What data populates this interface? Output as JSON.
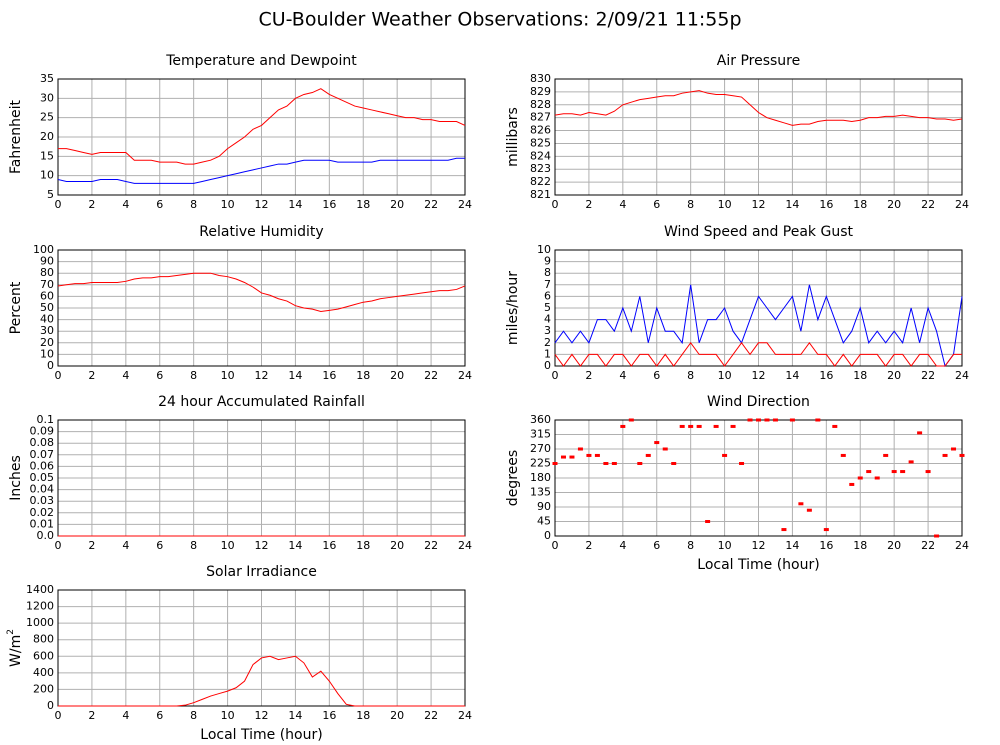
{
  "title": "CU-Boulder Weather Observations: 2/09/21 11:55p",
  "chart_data": [
    {
      "type": "line",
      "title": "Temperature and Dewpoint",
      "ylabel": "Fahrenheit",
      "x": [
        0,
        0.5,
        1,
        1.5,
        2,
        2.5,
        3,
        3.5,
        4,
        4.5,
        5,
        5.5,
        6,
        6.5,
        7,
        7.5,
        8,
        8.5,
        9,
        9.5,
        10,
        10.5,
        11,
        11.5,
        12,
        12.5,
        13,
        13.5,
        14,
        14.5,
        15,
        15.5,
        16,
        16.5,
        17,
        17.5,
        18,
        18.5,
        19,
        19.5,
        20,
        20.5,
        21,
        21.5,
        22,
        22.5,
        23,
        23.5,
        24
      ],
      "series": [
        {
          "color": "#ff0000",
          "values": [
            17,
            17,
            16.5,
            16,
            15.5,
            16,
            16,
            16,
            16,
            14,
            14,
            14,
            13.5,
            13.5,
            13.5,
            13,
            13,
            13.5,
            14,
            15,
            17,
            18.5,
            20,
            22,
            23,
            25,
            27,
            28,
            30,
            31,
            31.5,
            32.5,
            31,
            30,
            29,
            28,
            27.5,
            27,
            26.5,
            26,
            25.5,
            25,
            25,
            24.5,
            24.5,
            24,
            24,
            24,
            23
          ]
        },
        {
          "color": "#0000ff",
          "values": [
            9,
            8.5,
            8.5,
            8.5,
            8.5,
            9,
            9,
            9,
            8.5,
            8,
            8,
            8,
            8,
            8,
            8,
            8,
            8,
            8.5,
            9,
            9.5,
            10,
            10.5,
            11,
            11.5,
            12,
            12.5,
            13,
            13,
            13.5,
            14,
            14,
            14,
            14,
            13.5,
            13.5,
            13.5,
            13.5,
            13.5,
            14,
            14,
            14,
            14,
            14,
            14,
            14,
            14,
            14,
            14.5,
            14.5
          ]
        }
      ],
      "xlim": [
        0,
        24
      ],
      "xticks": [
        0,
        2,
        4,
        6,
        8,
        10,
        12,
        14,
        16,
        18,
        20,
        22,
        24
      ],
      "ylim": [
        5,
        35
      ],
      "yticks": [
        5,
        10,
        15,
        20,
        25,
        30,
        35
      ],
      "grid": true
    },
    {
      "type": "line",
      "title": "Air Pressure",
      "ylabel": "millibars",
      "x": [
        0,
        0.5,
        1,
        1.5,
        2,
        2.5,
        3,
        3.5,
        4,
        4.5,
        5,
        5.5,
        6,
        6.5,
        7,
        7.5,
        8,
        8.5,
        9,
        9.5,
        10,
        10.5,
        11,
        11.5,
        12,
        12.5,
        13,
        13.5,
        14,
        14.5,
        15,
        15.5,
        16,
        16.5,
        17,
        17.5,
        18,
        18.5,
        19,
        19.5,
        20,
        20.5,
        21,
        21.5,
        22,
        22.5,
        23,
        23.5,
        24
      ],
      "series": [
        {
          "color": "#ff0000",
          "values": [
            827.2,
            827.3,
            827.3,
            827.2,
            827.4,
            827.3,
            827.2,
            827.5,
            828,
            828.2,
            828.4,
            828.5,
            828.6,
            828.7,
            828.7,
            828.9,
            829,
            829.1,
            828.9,
            828.8,
            828.8,
            828.7,
            828.6,
            828,
            827.4,
            827,
            826.8,
            826.6,
            826.4,
            826.5,
            826.5,
            826.7,
            826.8,
            826.8,
            826.8,
            826.7,
            826.8,
            827,
            827,
            827.1,
            827.1,
            827.2,
            827.1,
            827,
            827,
            826.9,
            826.9,
            826.8,
            826.9
          ]
        }
      ],
      "xlim": [
        0,
        24
      ],
      "xticks": [
        0,
        2,
        4,
        6,
        8,
        10,
        12,
        14,
        16,
        18,
        20,
        22,
        24
      ],
      "ylim": [
        821,
        830
      ],
      "yticks": [
        821,
        822,
        823,
        824,
        825,
        826,
        827,
        828,
        829,
        830
      ],
      "grid": true
    },
    {
      "type": "line",
      "title": "Relative Humidity",
      "ylabel": "Percent",
      "x": [
        0,
        0.5,
        1,
        1.5,
        2,
        2.5,
        3,
        3.5,
        4,
        4.5,
        5,
        5.5,
        6,
        6.5,
        7,
        7.5,
        8,
        8.5,
        9,
        9.5,
        10,
        10.5,
        11,
        11.5,
        12,
        12.5,
        13,
        13.5,
        14,
        14.5,
        15,
        15.5,
        16,
        16.5,
        17,
        17.5,
        18,
        18.5,
        19,
        19.5,
        20,
        20.5,
        21,
        21.5,
        22,
        22.5,
        23,
        23.5,
        24
      ],
      "series": [
        {
          "color": "#ff0000",
          "values": [
            69,
            70,
            71,
            71,
            72,
            72,
            72,
            72,
            73,
            75,
            76,
            76,
            77,
            77,
            78,
            79,
            80,
            80,
            80,
            78,
            77,
            75,
            72,
            68,
            63,
            61,
            58,
            56,
            52,
            50,
            49,
            47,
            48,
            49,
            51,
            53,
            55,
            56,
            58,
            59,
            60,
            61,
            62,
            63,
            64,
            65,
            65,
            66,
            69
          ]
        }
      ],
      "xlim": [
        0,
        24
      ],
      "xticks": [
        0,
        2,
        4,
        6,
        8,
        10,
        12,
        14,
        16,
        18,
        20,
        22,
        24
      ],
      "ylim": [
        0,
        100
      ],
      "yticks": [
        0,
        10,
        20,
        30,
        40,
        50,
        60,
        70,
        80,
        90,
        100
      ],
      "grid": true
    },
    {
      "type": "line",
      "title": "Wind Speed and Peak Gust",
      "ylabel": "miles/hour",
      "x": [
        0,
        0.5,
        1,
        1.5,
        2,
        2.5,
        3,
        3.5,
        4,
        4.5,
        5,
        5.5,
        6,
        6.5,
        7,
        7.5,
        8,
        8.5,
        9,
        9.5,
        10,
        10.5,
        11,
        11.5,
        12,
        12.5,
        13,
        13.5,
        14,
        14.5,
        15,
        15.5,
        16,
        16.5,
        17,
        17.5,
        18,
        18.5,
        19,
        19.5,
        20,
        20.5,
        21,
        21.5,
        22,
        22.5,
        23,
        23.5,
        24
      ],
      "series": [
        {
          "color": "#0000ff",
          "values": [
            2,
            3,
            2,
            3,
            2,
            4,
            4,
            3,
            5,
            3,
            6,
            2,
            5,
            3,
            3,
            2,
            7,
            2,
            4,
            4,
            5,
            3,
            2,
            4,
            6,
            5,
            4,
            5,
            6,
            3,
            7,
            4,
            6,
            4,
            2,
            3,
            5,
            2,
            3,
            2,
            3,
            2,
            5,
            2,
            5,
            3,
            0,
            1,
            6
          ]
        },
        {
          "color": "#ff0000",
          "values": [
            1,
            0,
            1,
            0,
            1,
            1,
            0,
            1,
            1,
            0,
            1,
            1,
            0,
            1,
            0,
            1,
            2,
            1,
            1,
            1,
            0,
            1,
            2,
            1,
            2,
            2,
            1,
            1,
            1,
            1,
            2,
            1,
            1,
            0,
            1,
            0,
            1,
            1,
            1,
            0,
            1,
            1,
            0,
            1,
            1,
            0,
            0,
            1,
            1
          ]
        }
      ],
      "xlim": [
        0,
        24
      ],
      "xticks": [
        0,
        2,
        4,
        6,
        8,
        10,
        12,
        14,
        16,
        18,
        20,
        22,
        24
      ],
      "ylim": [
        0,
        10
      ],
      "yticks": [
        0,
        1,
        2,
        3,
        4,
        5,
        6,
        7,
        8,
        9,
        10
      ],
      "grid": true
    },
    {
      "type": "line",
      "title": "24 hour Accumulated Rainfall",
      "ylabel": "Inches",
      "x": [
        0,
        24
      ],
      "series": [
        {
          "color": "#ff0000",
          "values": [
            0,
            0
          ]
        }
      ],
      "xlim": [
        0,
        24
      ],
      "xticks": [
        0,
        2,
        4,
        6,
        8,
        10,
        12,
        14,
        16,
        18,
        20,
        22,
        24
      ],
      "ylim": [
        0,
        0.1
      ],
      "yticks": [
        {
          "value": 0,
          "label": "0.0"
        },
        0.01,
        0.02,
        0.03,
        0.04,
        0.05,
        0.06,
        0.07,
        0.08,
        0.09,
        0.1
      ],
      "grid": true
    },
    {
      "type": "scatter",
      "title": "Wind Direction",
      "ylabel": "degrees",
      "xlabel": "Local Time (hour)",
      "x": [
        0,
        0.5,
        1,
        1.5,
        2,
        2.5,
        3,
        3.5,
        4,
        4.5,
        5,
        5.5,
        6,
        6.5,
        7,
        7.5,
        8,
        8.5,
        9,
        9.5,
        10,
        10.5,
        11,
        11.5,
        12,
        12.5,
        13,
        13.5,
        14,
        14.5,
        15,
        15.5,
        16,
        16.5,
        17,
        17.5,
        18,
        18.5,
        19,
        19.5,
        20,
        20.5,
        21,
        21.5,
        22,
        22.5,
        23,
        23.5,
        24
      ],
      "series": [
        {
          "color": "#ff0000",
          "values": [
            225,
            245,
            245,
            270,
            250,
            250,
            225,
            225,
            340,
            360,
            225,
            250,
            290,
            270,
            225,
            340,
            340,
            340,
            45,
            340,
            250,
            340,
            225,
            360,
            360,
            360,
            360,
            20,
            360,
            100,
            80,
            360,
            20,
            340,
            250,
            160,
            180,
            200,
            180,
            250,
            200,
            200,
            230,
            320,
            200,
            0,
            250,
            270,
            250
          ]
        }
      ],
      "xlim": [
        0,
        24
      ],
      "xticks": [
        0,
        2,
        4,
        6,
        8,
        10,
        12,
        14,
        16,
        18,
        20,
        22,
        24
      ],
      "ylim": [
        0,
        360
      ],
      "yticks": [
        0,
        45,
        90,
        135,
        180,
        225,
        270,
        315,
        360
      ],
      "grid": true
    },
    {
      "type": "line",
      "title": "Solar Irradiance",
      "ylabel": "W/m",
      "ylabel_sup": "2",
      "xlabel": "Local Time (hour)",
      "x": [
        0,
        0.5,
        1,
        1.5,
        2,
        2.5,
        3,
        3.5,
        4,
        4.5,
        5,
        5.5,
        6,
        6.5,
        7,
        7.5,
        8,
        8.5,
        9,
        9.5,
        10,
        10.5,
        11,
        11.5,
        12,
        12.5,
        13,
        13.5,
        14,
        14.5,
        15,
        15.5,
        16,
        16.5,
        17,
        17.5,
        18,
        18.5,
        19,
        19.5,
        20,
        20.5,
        21,
        21.5,
        22,
        22.5,
        23,
        23.5,
        24
      ],
      "series": [
        {
          "color": "#ff0000",
          "values": [
            0,
            0,
            0,
            0,
            0,
            0,
            0,
            0,
            0,
            0,
            0,
            0,
            0,
            0,
            0,
            10,
            40,
            80,
            120,
            150,
            180,
            220,
            300,
            500,
            580,
            600,
            560,
            580,
            600,
            520,
            350,
            420,
            300,
            150,
            20,
            0,
            0,
            0,
            0,
            0,
            0,
            0,
            0,
            0,
            0,
            0,
            0,
            0,
            0
          ]
        }
      ],
      "xlim": [
        0,
        24
      ],
      "xticks": [
        0,
        2,
        4,
        6,
        8,
        10,
        12,
        14,
        16,
        18,
        20,
        22,
        24
      ],
      "ylim": [
        0,
        1400
      ],
      "yticks": [
        0,
        200,
        400,
        600,
        800,
        1000,
        1200,
        1400
      ],
      "grid": true
    }
  ]
}
